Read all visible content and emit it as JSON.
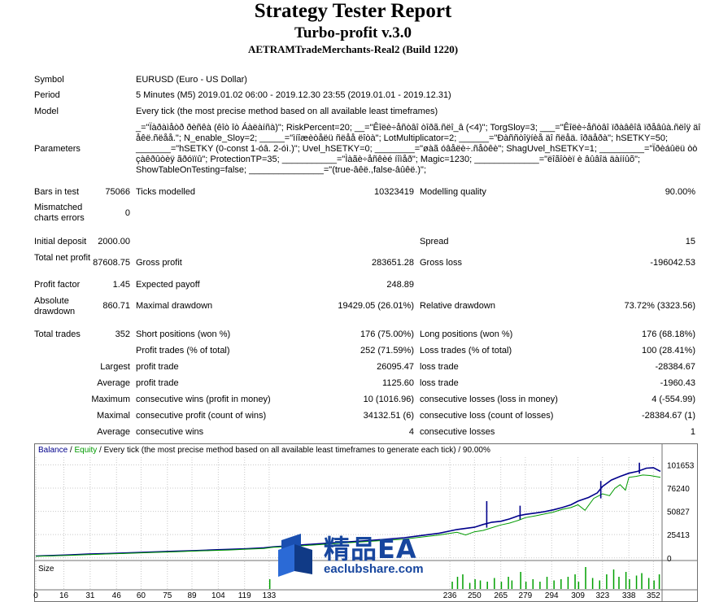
{
  "header": {
    "title": "Strategy Tester Report",
    "subtitle": "Turbo-profit v.3.0",
    "account": "AETRAMTradeMerchants-Real2 (Build 1220)"
  },
  "info": {
    "symbol_label": "Symbol",
    "symbol": "EURUSD (Euro - US Dollar)",
    "period_label": "Period",
    "period": "5 Minutes (M5) 2019.01.02 06:00 - 2019.12.30 23:55 (2019.01.01 - 2019.12.31)",
    "model_label": "Model",
    "model": "Every tick (the most precise method based on all available least timeframes)",
    "parameters_label": "Parameters",
    "parameters": [
      "_=\"Ïàðàìåòð ðèñêà (êîò îò Áàëàíñà)\"; RiskPercent=20; __=\"Êîëè÷åñòâî òîðã.ñëî_â (<4)\"; TorgSloy=3; ___=\"Êîëè÷åñòâî ïðàâêîâ ïðåâûà.ñëîÿ äî",
      "åêë.ñëåå.\"; N_enable_Sloy=2; _____=\"ìíîæèòåëü ñëåå ëîòà\"; LotMultiplicator=2; ______=\"Ðàññòîÿíèå äî ñëåä. îðäåðà\"; hSETKY=50;",
      "_______=\"hSETKY (0-const 1-óâ. 2-óì.)\"; Uvel_hSETKY=0; ________=\"øàã óâåëè÷.ñåòêè\"; ShagUvel_hSETKY=1; _________=\"Ïðèáûëü òò",
      "çàêðûòèÿ ãðóïïû\"; ProtectionTP=35; ___________=\"Ìàãè÷åñêèé íîìåð\"; Magic=1230; _____________=\"ëîãîòèï è âûâîä äàííûõ\";",
      "ShowTableOnTesting=false; _______________=\"(true-âêë.,false-âûêë.)\";"
    ]
  },
  "stats": {
    "bars_label": "Bars in test",
    "bars": "75066",
    "ticks_label": "Ticks modelled",
    "ticks": "10323419",
    "quality_label": "Modelling quality",
    "quality": "90.00%",
    "mismatched_label": "Mismatched charts errors",
    "mismatched": "0",
    "initial_deposit_label": "Initial deposit",
    "initial_deposit": "2000.00",
    "spread_label": "Spread",
    "spread": "15",
    "net_profit_label": "Total net profit",
    "net_profit": "87608.75",
    "gross_profit_label": "Gross profit",
    "gross_profit": "283651.28",
    "gross_loss_label": "Gross loss",
    "gross_loss": "-196042.53",
    "profit_factor_label": "Profit factor",
    "profit_factor": "1.45",
    "expected_payoff_label": "Expected payoff",
    "expected_payoff": "248.89",
    "abs_drawdown_label": "Absolute drawdown",
    "abs_drawdown": "860.71",
    "max_drawdown_label": "Maximal drawdown",
    "max_drawdown": "19429.05 (26.01%)",
    "rel_drawdown_label": "Relative drawdown",
    "rel_drawdown": "73.72% (3323.56)",
    "total_trades_label": "Total trades",
    "total_trades": "352",
    "short_label": "Short positions (won %)",
    "short": "176 (75.00%)",
    "long_label": "Long positions (won %)",
    "long": "176 (68.18%)",
    "profit_trades_label": "Profit trades (% of total)",
    "profit_trades": "252 (71.59%)",
    "loss_trades_label": "Loss trades (% of total)",
    "loss_trades": "100 (28.41%)",
    "largest_label": "Largest",
    "largest_profit_label": "profit trade",
    "largest_profit": "26095.47",
    "largest_loss_label": "loss trade",
    "largest_loss": "-28384.67",
    "average_label": "Average",
    "average_profit_label": "profit trade",
    "average_profit": "1125.60",
    "average_loss_label": "loss trade",
    "average_loss": "-1960.43",
    "maximum_label": "Maximum",
    "max_cons_wins_label": "consecutive wins (profit in money)",
    "max_cons_wins": "10 (1016.96)",
    "max_cons_losses_label": "consecutive losses (loss in money)",
    "max_cons_losses": "4 (-554.99)",
    "maximal_label": "Maximal",
    "maximal_cons_profit_label": "consecutive profit (count of wins)",
    "maximal_cons_profit": "34132.51 (6)",
    "maximal_cons_loss_label": "consecutive loss (count of losses)",
    "maximal_cons_loss": "-28384.67 (1)",
    "average2_label": "Average",
    "avg_cons_wins_label": "consecutive wins",
    "avg_cons_wins": "4",
    "avg_cons_losses_label": "consecutive losses",
    "avg_cons_losses": "1"
  },
  "chart_data": {
    "type": "line",
    "legend": {
      "balance": "Balance",
      "sep": " / ",
      "equity": "Equity",
      "rest": " / Every tick (the most precise method based on all available least timeframes to generate each tick) / 90.00%"
    },
    "colors": {
      "balance": "#00008b",
      "equity": "#009a00",
      "volume": "#00a000"
    },
    "y_ticks": [
      "101653",
      "76240",
      "50827",
      "25413",
      "0"
    ],
    "y_tick_values": [
      101653,
      76240,
      50827,
      25413,
      0
    ],
    "x_ticks": [
      "0",
      "16",
      "31",
      "46",
      "60",
      "75",
      "89",
      "104",
      "119",
      "133",
      "236",
      "250",
      "265",
      "279",
      "294",
      "309",
      "323",
      "338",
      "352"
    ],
    "x_tick_values": [
      0,
      16,
      31,
      46,
      60,
      75,
      89,
      104,
      119,
      133,
      236,
      250,
      265,
      279,
      294,
      309,
      323,
      338,
      352
    ],
    "x_range": [
      0,
      356
    ],
    "y_range": [
      -2000,
      110000
    ],
    "size_label": "Size",
    "series": [
      {
        "name": "Balance",
        "points": [
          [
            0,
            2000
          ],
          [
            10,
            2600
          ],
          [
            20,
            3300
          ],
          [
            30,
            4100
          ],
          [
            40,
            4700
          ],
          [
            50,
            5300
          ],
          [
            60,
            6000
          ],
          [
            70,
            6600
          ],
          [
            80,
            7200
          ],
          [
            90,
            7900
          ],
          [
            100,
            8600
          ],
          [
            110,
            9300
          ],
          [
            120,
            10000
          ],
          [
            130,
            11000
          ],
          [
            135,
            12000
          ],
          [
            150,
            14000
          ],
          [
            170,
            16500
          ],
          [
            190,
            19000
          ],
          [
            210,
            22000
          ],
          [
            230,
            27000
          ],
          [
            240,
            31000
          ],
          [
            250,
            33500
          ],
          [
            255,
            36500
          ],
          [
            260,
            39000
          ],
          [
            265,
            40000
          ],
          [
            270,
            42500
          ],
          [
            275,
            46000
          ],
          [
            279,
            47500
          ],
          [
            285,
            49000
          ],
          [
            290,
            50500
          ],
          [
            295,
            52500
          ],
          [
            300,
            55000
          ],
          [
            305,
            58000
          ],
          [
            309,
            62000
          ],
          [
            315,
            66000
          ],
          [
            320,
            71000
          ],
          [
            323,
            78000
          ],
          [
            328,
            85000
          ],
          [
            333,
            89000
          ],
          [
            338,
            92500
          ],
          [
            343,
            94500
          ],
          [
            348,
            98000
          ],
          [
            352,
            98500
          ],
          [
            356,
            94500
          ]
        ]
      },
      {
        "name": "Equity",
        "points": [
          [
            0,
            1800
          ],
          [
            10,
            2300
          ],
          [
            20,
            2800
          ],
          [
            30,
            3600
          ],
          [
            40,
            4200
          ],
          [
            50,
            4800
          ],
          [
            60,
            5500
          ],
          [
            70,
            6100
          ],
          [
            80,
            6700
          ],
          [
            90,
            7400
          ],
          [
            100,
            8000
          ],
          [
            110,
            8600
          ],
          [
            120,
            9500
          ],
          [
            130,
            10200
          ],
          [
            135,
            11500
          ],
          [
            150,
            13000
          ],
          [
            170,
            15500
          ],
          [
            190,
            18000
          ],
          [
            210,
            20500
          ],
          [
            230,
            25000
          ],
          [
            240,
            28000
          ],
          [
            245,
            25000
          ],
          [
            250,
            28500
          ],
          [
            255,
            30000
          ],
          [
            260,
            33000
          ],
          [
            265,
            36000
          ],
          [
            270,
            38000
          ],
          [
            275,
            41000
          ],
          [
            279,
            44000
          ],
          [
            285,
            46000
          ],
          [
            290,
            48000
          ],
          [
            295,
            50000
          ],
          [
            300,
            53000
          ],
          [
            305,
            55000
          ],
          [
            309,
            58000
          ],
          [
            313,
            52000
          ],
          [
            318,
            65000
          ],
          [
            323,
            70000
          ],
          [
            327,
            68000
          ],
          [
            330,
            76000
          ],
          [
            333,
            80000
          ],
          [
            336,
            74000
          ],
          [
            338,
            88000
          ],
          [
            342,
            89000
          ],
          [
            346,
            90500
          ],
          [
            350,
            90000
          ],
          [
            353,
            89000
          ],
          [
            356,
            88000
          ]
        ]
      }
    ],
    "balance_spikes": [
      [
        257,
        33000,
        62000
      ],
      [
        276,
        42000,
        57000
      ],
      [
        322,
        65000,
        84000
      ],
      [
        344,
        92000,
        104000
      ]
    ],
    "volume_bars": [
      [
        133,
        0.4
      ],
      [
        237,
        0.3
      ],
      [
        240,
        0.5
      ],
      [
        243,
        0.6
      ],
      [
        247,
        0.25
      ],
      [
        250,
        0.4
      ],
      [
        253,
        0.35
      ],
      [
        257,
        0.3
      ],
      [
        261,
        0.45
      ],
      [
        265,
        0.3
      ],
      [
        269,
        0.5
      ],
      [
        271,
        0.35
      ],
      [
        276,
        0.7
      ],
      [
        279,
        0.3
      ],
      [
        283,
        0.4
      ],
      [
        287,
        0.3
      ],
      [
        291,
        0.5
      ],
      [
        295,
        0.35
      ],
      [
        299,
        0.4
      ],
      [
        303,
        0.5
      ],
      [
        307,
        0.6
      ],
      [
        309,
        0.3
      ],
      [
        313,
        0.9
      ],
      [
        317,
        0.45
      ],
      [
        321,
        0.35
      ],
      [
        325,
        0.6
      ],
      [
        329,
        0.8
      ],
      [
        332,
        0.5
      ],
      [
        336,
        0.7
      ],
      [
        338,
        0.4
      ],
      [
        342,
        0.55
      ],
      [
        345,
        0.65
      ],
      [
        349,
        0.45
      ],
      [
        352,
        0.35
      ],
      [
        355,
        0.6
      ]
    ]
  },
  "watermark": {
    "title": "精品EA",
    "url": "eaclubshare.com"
  }
}
